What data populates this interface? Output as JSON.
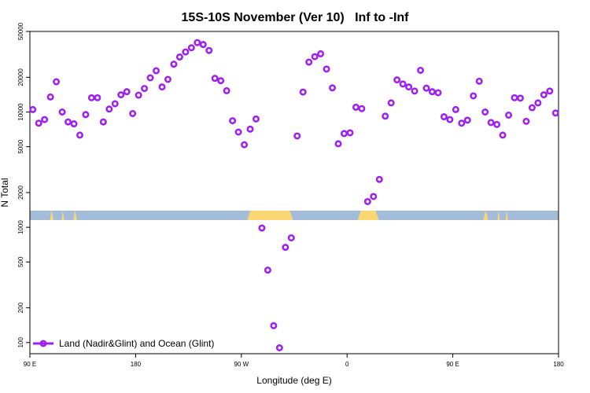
{
  "chart_data": {
    "type": "scatter",
    "title": "15S-10S November (Ver 10)   Inf to -Inf",
    "xlabel": "Longitude (deg E)",
    "ylabel": "N Total",
    "x_scale": "longitude, 90 E to 180 E wrapping through 180 / 90 W / 0 / 90 E to 180",
    "xlim": [
      90,
      540
    ],
    "y_scale": "log",
    "ylim": [
      80,
      50000
    ],
    "x_ticks": [
      {
        "value": 90,
        "label": "90 E"
      },
      {
        "value": 180,
        "label": "180"
      },
      {
        "value": 270,
        "label": "90 W"
      },
      {
        "value": 360,
        "label": "0"
      },
      {
        "value": 450,
        "label": "90 E"
      },
      {
        "value": 540,
        "label": "180"
      }
    ],
    "y_ticks": [
      {
        "value": 100,
        "label": "100"
      },
      {
        "value": 200,
        "label": "200"
      },
      {
        "value": 500,
        "label": "500"
      },
      {
        "value": 1000,
        "label": "1000"
      },
      {
        "value": 2000,
        "label": "2000"
      },
      {
        "value": 5000,
        "label": "5000"
      },
      {
        "value": 10000,
        "label": "10000"
      },
      {
        "value": 20000,
        "label": "20000"
      },
      {
        "value": 50000,
        "label": "50000"
      }
    ],
    "grid": false,
    "legend_position": "bottom-left",
    "series": [
      {
        "name": "Land (Nadir&Glint) and Ocean (Glint)",
        "color": "#a020f0",
        "marker": "open-circle",
        "x": [
          92.5,
          97.5,
          102.5,
          107.5,
          112.5,
          117.5,
          122.5,
          127.5,
          132.5,
          137.5,
          142.5,
          147.5,
          152.5,
          157.5,
          162.5,
          167.5,
          172.5,
          177.5,
          182.5,
          187.5,
          192.5,
          197.5,
          202.5,
          207.5,
          212.5,
          217.5,
          222.5,
          227.5,
          232.5,
          237.5,
          242.5,
          247.5,
          252.5,
          257.5,
          262.5,
          267.5,
          272.5,
          277.5,
          282.5,
          287.5,
          292.5,
          297.5,
          302.5,
          307.5,
          312.5,
          317.5,
          322.5,
          327.5,
          332.5,
          337.5,
          342.5,
          347.5,
          352.5,
          357.5,
          362.5,
          367.5,
          372.5,
          377.5,
          382.5,
          387.5,
          392.5,
          397.5,
          402.5,
          407.5,
          412.5,
          417.5,
          422.5,
          427.5,
          432.5,
          437.5,
          442.5,
          447.5,
          452.5,
          457.5,
          462.5,
          467.5,
          472.5,
          477.5,
          482.5,
          487.5,
          492.5,
          497.5,
          502.5,
          507.5,
          512.5,
          517.5,
          522.5,
          527.5,
          532.5,
          537.5
        ],
        "y": [
          10500,
          8000,
          8600,
          13500,
          18300,
          10000,
          8200,
          7900,
          6300,
          9500,
          13300,
          13300,
          8200,
          10600,
          11800,
          14100,
          15000,
          9700,
          14000,
          16000,
          19800,
          22800,
          16500,
          19200,
          26000,
          30000,
          33200,
          36100,
          40000,
          38500,
          34200,
          19600,
          18700,
          15300,
          8400,
          6700,
          5200,
          7100,
          8700,
          985,
          425,
          140,
          90,
          670,
          810,
          6200,
          14900,
          27100,
          30200,
          32000,
          23600,
          16200,
          5300,
          6500,
          6600,
          11000,
          10700,
          1670,
          1850,
          2600,
          9200,
          12000,
          19000,
          17500,
          16500,
          15200,
          23000,
          16100,
          15000,
          14700,
          9100,
          8600,
          10500,
          8000,
          8500,
          13800,
          18500,
          10000,
          8100,
          7800,
          6300,
          9400,
          13300,
          13200,
          8300,
          10900,
          12000,
          14100,
          15200,
          9800
        ]
      }
    ]
  },
  "legend": {
    "label": "Land (Nadir&Glint) and Ocean (Glint)"
  },
  "surface_strip": {
    "ocean_color": "#a3bcd9",
    "land_color": "#fbd774",
    "land_ranges": [
      [
        107,
        110
      ],
      [
        117,
        119
      ],
      [
        127,
        130
      ],
      [
        275,
        314
      ],
      [
        369,
        387
      ],
      [
        476,
        480
      ],
      [
        488,
        490
      ],
      [
        495,
        497
      ]
    ]
  }
}
